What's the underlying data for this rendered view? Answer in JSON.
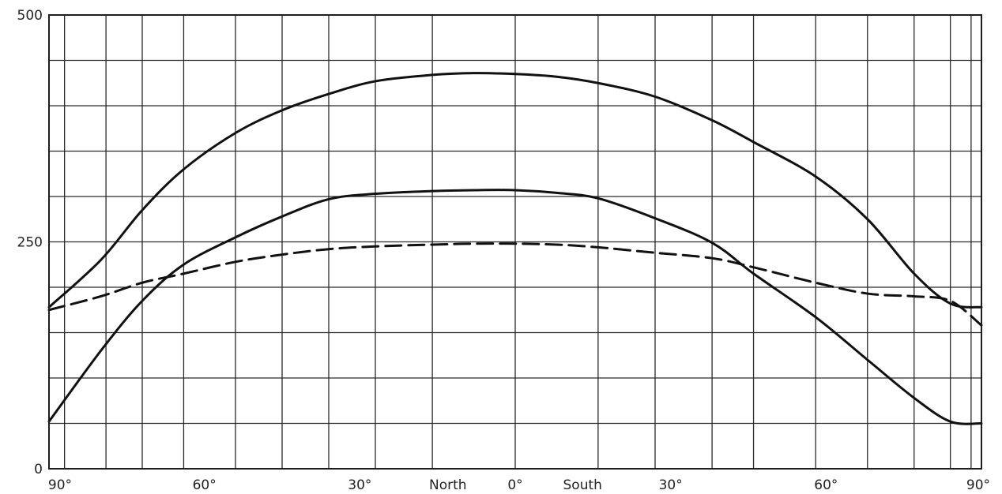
{
  "chart_data": {
    "type": "line",
    "title": "",
    "xlabel": "",
    "ylabel": "",
    "ylim": [
      0,
      500
    ],
    "xlim": [
      -90,
      90
    ],
    "grid": true,
    "y_ticks": [
      {
        "value": 0,
        "label": "0"
      },
      {
        "value": 250,
        "label": "250"
      },
      {
        "value": 500,
        "label": "500"
      }
    ],
    "x_ticks": [
      {
        "value": -90,
        "label": "90°"
      },
      {
        "value": -60,
        "label": "60°"
      },
      {
        "value": -30,
        "label": "30°"
      },
      {
        "value": -13,
        "label": "North"
      },
      {
        "value": 0,
        "label": "0°"
      },
      {
        "value": 13,
        "label": "South"
      },
      {
        "value": 30,
        "label": "30°"
      },
      {
        "value": 60,
        "label": "60°"
      },
      {
        "value": 90,
        "label": "90°"
      }
    ],
    "grid_x": [
      -90,
      -87,
      -79,
      -72,
      -64,
      -54,
      -45,
      -36,
      -27,
      -16,
      0,
      16,
      27,
      38,
      46,
      58,
      68,
      77,
      84,
      88,
      90
    ],
    "grid_y": [
      0,
      50,
      100,
      150,
      200,
      250,
      300,
      350,
      400,
      450,
      500
    ],
    "series": [
      {
        "style": "solid",
        "x": [
          -90,
          -80,
          -72,
          -64,
          -54,
          -45,
          -36,
          -27,
          -16,
          -8,
          0,
          8,
          16,
          27,
          38,
          46,
          58,
          68,
          77,
          84,
          90
        ],
        "values": [
          178,
          230,
          285,
          330,
          370,
          395,
          413,
          427,
          434,
          436,
          435,
          432,
          425,
          410,
          384,
          360,
          322,
          275,
          215,
          182,
          178
        ]
      },
      {
        "style": "solid",
        "x": [
          -90,
          -80,
          -72,
          -64,
          -54,
          -45,
          -36,
          -27,
          -16,
          -8,
          0,
          8,
          16,
          27,
          38,
          46,
          58,
          68,
          77,
          84,
          90
        ],
        "values": [
          52,
          130,
          185,
          225,
          255,
          278,
          297,
          303,
          306,
          307,
          307,
          304,
          298,
          276,
          249,
          215,
          167,
          120,
          78,
          52,
          50
        ]
      },
      {
        "style": "dashed",
        "x": [
          -90,
          -80,
          -72,
          -64,
          -54,
          -45,
          -36,
          -27,
          -16,
          -8,
          0,
          8,
          16,
          27,
          38,
          46,
          58,
          68,
          77,
          84,
          90
        ],
        "values": [
          175,
          190,
          205,
          215,
          228,
          236,
          242,
          245,
          247,
          248,
          248,
          247,
          244,
          238,
          232,
          222,
          205,
          193,
          190,
          185,
          158
        ]
      }
    ]
  }
}
